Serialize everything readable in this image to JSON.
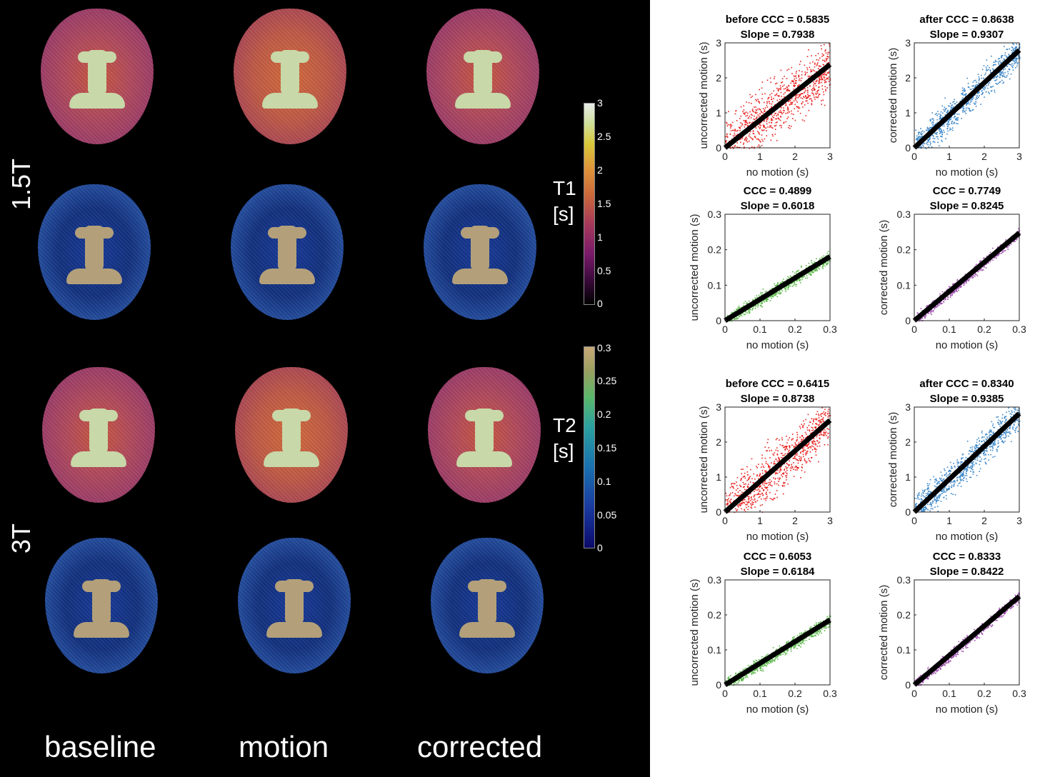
{
  "row_labels": [
    "1.5T",
    "3T"
  ],
  "column_labels": [
    "baseline",
    "motion",
    "corrected"
  ],
  "colorbars": [
    {
      "title": [
        "T1",
        "[s]"
      ],
      "ticks": [
        "3",
        "2.5",
        "2",
        "1.5",
        "1",
        "0.5",
        "0"
      ],
      "colormap": "inferno-like"
    },
    {
      "title": [
        "T2",
        "[s]"
      ],
      "ticks": [
        "0.3",
        "0.25",
        "0.2",
        "0.15",
        "0.1",
        "0.05",
        "0"
      ],
      "colormap": "batlow-like"
    }
  ],
  "chart_data": [
    {
      "type": "scatter",
      "title": [
        "before CCC = 0.5835",
        "Slope = 0.7938"
      ],
      "xlabel": "no motion (s)",
      "ylabel": "uncorrected motion (s)",
      "xlim": [
        0,
        3
      ],
      "ylim": [
        0,
        3
      ],
      "xticks": [
        0,
        1,
        2,
        3
      ],
      "yticks": [
        0,
        1,
        2,
        3
      ],
      "tick_labels": [
        "0",
        "1",
        "2",
        "3"
      ],
      "slope": 0.7938,
      "ccc": 0.5835,
      "spread": 0.55,
      "color": "#e8221e"
    },
    {
      "type": "scatter",
      "title": [
        "after  CCC = 0.8638",
        "Slope = 0.9307"
      ],
      "xlabel": "no motion (s)",
      "ylabel": "corrected motion (s)",
      "xlim": [
        0,
        3
      ],
      "ylim": [
        0,
        3
      ],
      "xticks": [
        0,
        1,
        2,
        3
      ],
      "yticks": [
        0,
        1,
        2,
        3
      ],
      "tick_labels": [
        "0",
        "1",
        "2",
        "3"
      ],
      "slope": 0.9307,
      "ccc": 0.8638,
      "spread": 0.3,
      "color": "#3a86c8"
    },
    {
      "type": "scatter",
      "title": [
        "CCC = 0.4899",
        "Slope = 0.6018"
      ],
      "xlabel": "no motion (s)",
      "ylabel": "uncorrected motion (s)",
      "xlim": [
        0,
        0.3
      ],
      "ylim": [
        0,
        0.3
      ],
      "xticks": [
        0,
        0.1,
        0.2,
        0.3
      ],
      "yticks": [
        0,
        0.1,
        0.2,
        0.3
      ],
      "tick_labels": [
        "0",
        "0.1",
        "0.2",
        "0.3"
      ],
      "slope": 0.6018,
      "ccc": 0.4899,
      "spread": 0.12,
      "color": "#5cb84a"
    },
    {
      "type": "scatter",
      "title": [
        "CCC = 0.7749",
        "Slope = 0.8245"
      ],
      "xlabel": "no motion (s)",
      "ylabel": "corrected motion (s)",
      "xlim": [
        0,
        0.3
      ],
      "ylim": [
        0,
        0.3
      ],
      "xticks": [
        0,
        0.1,
        0.2,
        0.3
      ],
      "yticks": [
        0,
        0.1,
        0.2,
        0.3
      ],
      "tick_labels": [
        "0",
        "0.1",
        "0.2",
        "0.3"
      ],
      "slope": 0.8245,
      "ccc": 0.7749,
      "spread": 0.1,
      "color": "#a050b0"
    },
    {
      "type": "scatter",
      "title": [
        "before CCC = 0.6415",
        "Slope = 0.8738"
      ],
      "xlabel": "no motion (s)",
      "ylabel": "uncorrected motion (s)",
      "xlim": [
        0,
        3
      ],
      "ylim": [
        0,
        3
      ],
      "xticks": [
        0,
        1,
        2,
        3
      ],
      "yticks": [
        0,
        1,
        2,
        3
      ],
      "tick_labels": [
        "0",
        "1",
        "2",
        "3"
      ],
      "slope": 0.8738,
      "ccc": 0.6415,
      "spread": 0.5,
      "color": "#e8221e"
    },
    {
      "type": "scatter",
      "title": [
        "after  CCC = 0.8340",
        "Slope = 0.9385"
      ],
      "xlabel": "no motion (s)",
      "ylabel": "corrected motion (s)",
      "xlim": [
        0,
        3
      ],
      "ylim": [
        0,
        3
      ],
      "xticks": [
        0,
        1,
        2,
        3
      ],
      "yticks": [
        0,
        1,
        2,
        3
      ],
      "tick_labels": [
        "0",
        "1",
        "2",
        "3"
      ],
      "slope": 0.9385,
      "ccc": 0.834,
      "spread": 0.32,
      "color": "#3a86c8"
    },
    {
      "type": "scatter",
      "title": [
        "CCC = 0.6053",
        "Slope = 0.6184"
      ],
      "xlabel": "no motion (s)",
      "ylabel": "uncorrected motion (s)",
      "xlim": [
        0,
        0.3
      ],
      "ylim": [
        0,
        0.3
      ],
      "xticks": [
        0,
        0.1,
        0.2,
        0.3
      ],
      "yticks": [
        0,
        0.1,
        0.2,
        0.3
      ],
      "tick_labels": [
        "0",
        "0.1",
        "0.2",
        "0.3"
      ],
      "slope": 0.6184,
      "ccc": 0.6053,
      "spread": 0.12,
      "color": "#5cb84a"
    },
    {
      "type": "scatter",
      "title": [
        "CCC = 0.8333",
        "Slope = 0.8422"
      ],
      "xlabel": "no motion (s)",
      "ylabel": "corrected motion (s)",
      "xlim": [
        0,
        0.3
      ],
      "ylim": [
        0,
        0.3
      ],
      "xticks": [
        0,
        0.1,
        0.2,
        0.3
      ],
      "yticks": [
        0,
        0.1,
        0.2,
        0.3
      ],
      "tick_labels": [
        "0",
        "0.1",
        "0.2",
        "0.3"
      ],
      "slope": 0.8422,
      "ccc": 0.8333,
      "spread": 0.1,
      "color": "#a050b0"
    }
  ]
}
